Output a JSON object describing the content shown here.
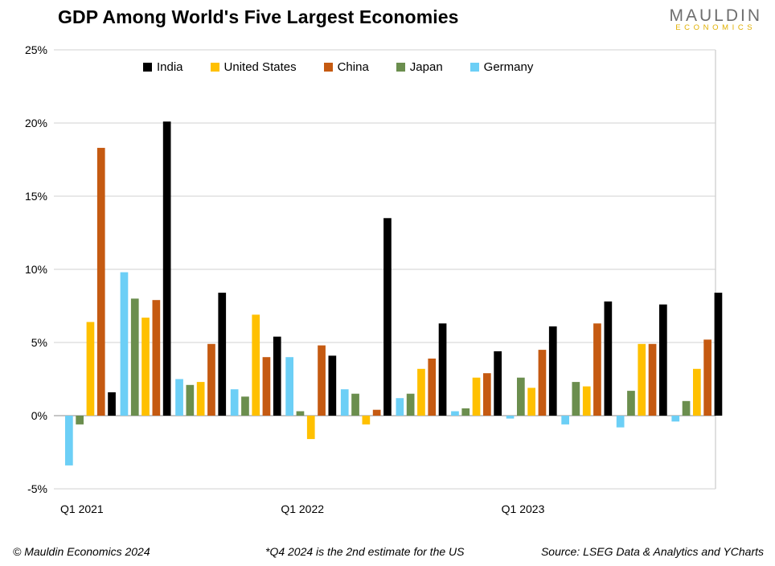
{
  "title": "GDP Among World's Five Largest Economies",
  "logo": {
    "top": "MAULDIN",
    "bottom": "ECONOMICS"
  },
  "footer": {
    "left": "© Mauldin Economics 2024",
    "middle": "*Q4 2024 is the 2nd estimate for the US",
    "right": "Source: LSEG Data & Analytics and YCharts"
  },
  "chart_data": {
    "type": "bar",
    "ylim": [
      -5,
      25
    ],
    "yticks": [
      "-5%",
      "0%",
      "5%",
      "10%",
      "15%",
      "20%",
      "25%"
    ],
    "ytick_values": [
      -5,
      0,
      5,
      10,
      15,
      20,
      25
    ],
    "grid": true,
    "legend_position": "top",
    "x_tick_labels": [
      {
        "index": 0,
        "label": "Q1 2021"
      },
      {
        "index": 4,
        "label": "Q1 2022"
      },
      {
        "index": 8,
        "label": "Q1 2023"
      }
    ],
    "groups": 12,
    "series": [
      {
        "name": "Germany",
        "color": "#6ccff6",
        "values": [
          -3.4,
          9.8,
          2.5,
          1.8,
          4.0,
          1.8,
          1.2,
          0.3,
          -0.2,
          -0.6,
          -0.8,
          -0.4
        ]
      },
      {
        "name": "Japan",
        "color": "#6b8e4e",
        "values": [
          -0.6,
          8.0,
          2.1,
          1.3,
          0.3,
          1.5,
          1.5,
          0.5,
          2.6,
          2.3,
          1.7,
          1.0
        ]
      },
      {
        "name": "United States",
        "color": "#ffc000",
        "values": [
          6.4,
          6.7,
          2.3,
          6.9,
          -1.6,
          -0.6,
          3.2,
          2.6,
          1.9,
          2.0,
          4.9,
          3.2
        ]
      },
      {
        "name": "China",
        "color": "#c55a11",
        "values": [
          18.3,
          7.9,
          4.9,
          4.0,
          4.8,
          0.4,
          3.9,
          2.9,
          4.5,
          6.3,
          4.9,
          5.2
        ]
      },
      {
        "name": "India",
        "color": "#000000",
        "values": [
          1.6,
          20.1,
          8.4,
          5.4,
          4.1,
          13.5,
          6.3,
          4.4,
          6.1,
          7.8,
          7.6,
          8.4
        ]
      }
    ],
    "legend_order": [
      "India",
      "United States",
      "China",
      "Japan",
      "Germany"
    ]
  }
}
